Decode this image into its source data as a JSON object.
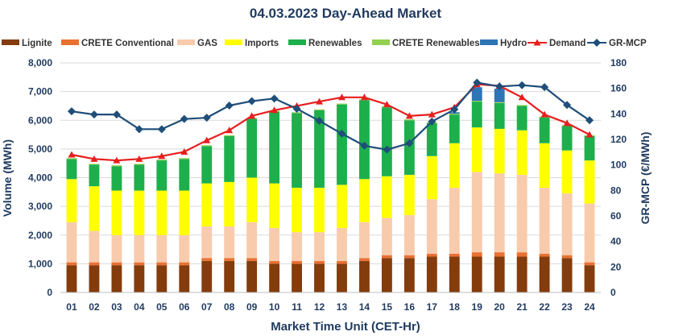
{
  "chart_data": {
    "type": "bar",
    "title": "04.03.2023  Day-Ahead Market",
    "xlabel": "Market Time Unit (CET-Hr)",
    "ylabel": "Volume (MWh)",
    "y2label": "GR-MCP (€/MWh)",
    "ylim": [
      0,
      8000
    ],
    "y2lim": [
      0,
      180
    ],
    "yticks": [
      "0",
      "1,000",
      "2,000",
      "3,000",
      "4,000",
      "5,000",
      "6,000",
      "7,000",
      "8,000"
    ],
    "y2ticks": [
      "0",
      "20",
      "40",
      "60",
      "80",
      "100",
      "120",
      "140",
      "160",
      "180"
    ],
    "categories": [
      "01",
      "02",
      "03",
      "04",
      "05",
      "06",
      "07",
      "08",
      "09",
      "10",
      "11",
      "12",
      "13",
      "14",
      "15",
      "16",
      "17",
      "18",
      "19",
      "20",
      "21",
      "22",
      "23",
      "24"
    ],
    "legend_position": "top",
    "series": [
      {
        "name": "Lignite",
        "kind": "bar",
        "color": "#843C0C",
        "values": [
          950,
          950,
          950,
          950,
          950,
          950,
          1100,
          1100,
          1100,
          1000,
          1000,
          1000,
          1000,
          1100,
          1200,
          1200,
          1250,
          1250,
          1250,
          1250,
          1250,
          1250,
          1200,
          950
        ]
      },
      {
        "name": "CRETE Conventional",
        "kind": "bar",
        "color": "#E97132",
        "values": [
          100,
          100,
          100,
          100,
          100,
          100,
          100,
          100,
          100,
          100,
          100,
          100,
          100,
          100,
          100,
          100,
          100,
          100,
          150,
          150,
          150,
          100,
          100,
          100
        ]
      },
      {
        "name": "GAS",
        "kind": "bar",
        "color": "#F8CBAD",
        "values": [
          1400,
          1100,
          950,
          950,
          950,
          950,
          1100,
          1100,
          1250,
          1150,
          1000,
          1000,
          1150,
          1250,
          1300,
          1400,
          1900,
          2300,
          2800,
          2750,
          2700,
          2300,
          2150,
          2050
        ]
      },
      {
        "name": "Imports",
        "kind": "bar",
        "color": "#FFFF00",
        "values": [
          1500,
          1550,
          1550,
          1550,
          1550,
          1550,
          1500,
          1550,
          1550,
          1550,
          1550,
          1550,
          1500,
          1500,
          1450,
          1400,
          1500,
          1550,
          1550,
          1550,
          1550,
          1550,
          1500,
          1500
        ]
      },
      {
        "name": "Renewables",
        "kind": "bar",
        "color": "#1DAF4C",
        "values": [
          700,
          750,
          850,
          900,
          1050,
          1100,
          1300,
          1600,
          2050,
          2500,
          2600,
          2700,
          2800,
          2750,
          2400,
          1900,
          1150,
          1000,
          900,
          900,
          850,
          900,
          850,
          850
        ]
      },
      {
        "name": "CRETE Renewables",
        "kind": "bar",
        "color": "#92D050",
        "values": [
          30,
          30,
          30,
          30,
          30,
          30,
          30,
          30,
          30,
          30,
          30,
          30,
          30,
          30,
          30,
          30,
          30,
          30,
          30,
          30,
          30,
          30,
          30,
          30
        ]
      },
      {
        "name": "Hydro",
        "kind": "bar",
        "color": "#2E75B6",
        "values": [
          0,
          0,
          0,
          0,
          0,
          0,
          0,
          0,
          0,
          0,
          0,
          0,
          0,
          0,
          0,
          0,
          0,
          50,
          470,
          470,
          0,
          0,
          0,
          0
        ]
      },
      {
        "name": "Demand",
        "kind": "line",
        "axis": "left",
        "color": "#E81E1E",
        "marker": "triangle",
        "values": [
          4800,
          4650,
          4600,
          4650,
          4750,
          4900,
          5300,
          5650,
          6150,
          6350,
          6500,
          6650,
          6800,
          6800,
          6550,
          6150,
          6200,
          6450,
          7250,
          7200,
          6800,
          6200,
          5900,
          5500
        ]
      },
      {
        "name": "GR-MCP",
        "kind": "line",
        "axis": "right",
        "color": "#1F4E79",
        "marker": "diamond",
        "values": [
          142,
          139.5,
          139.5,
          128,
          128,
          136,
          137,
          146.5,
          150,
          152,
          144,
          134.5,
          124.5,
          115,
          112,
          117,
          134,
          143.5,
          164.5,
          161.5,
          162.5,
          161,
          147,
          135
        ]
      }
    ]
  }
}
